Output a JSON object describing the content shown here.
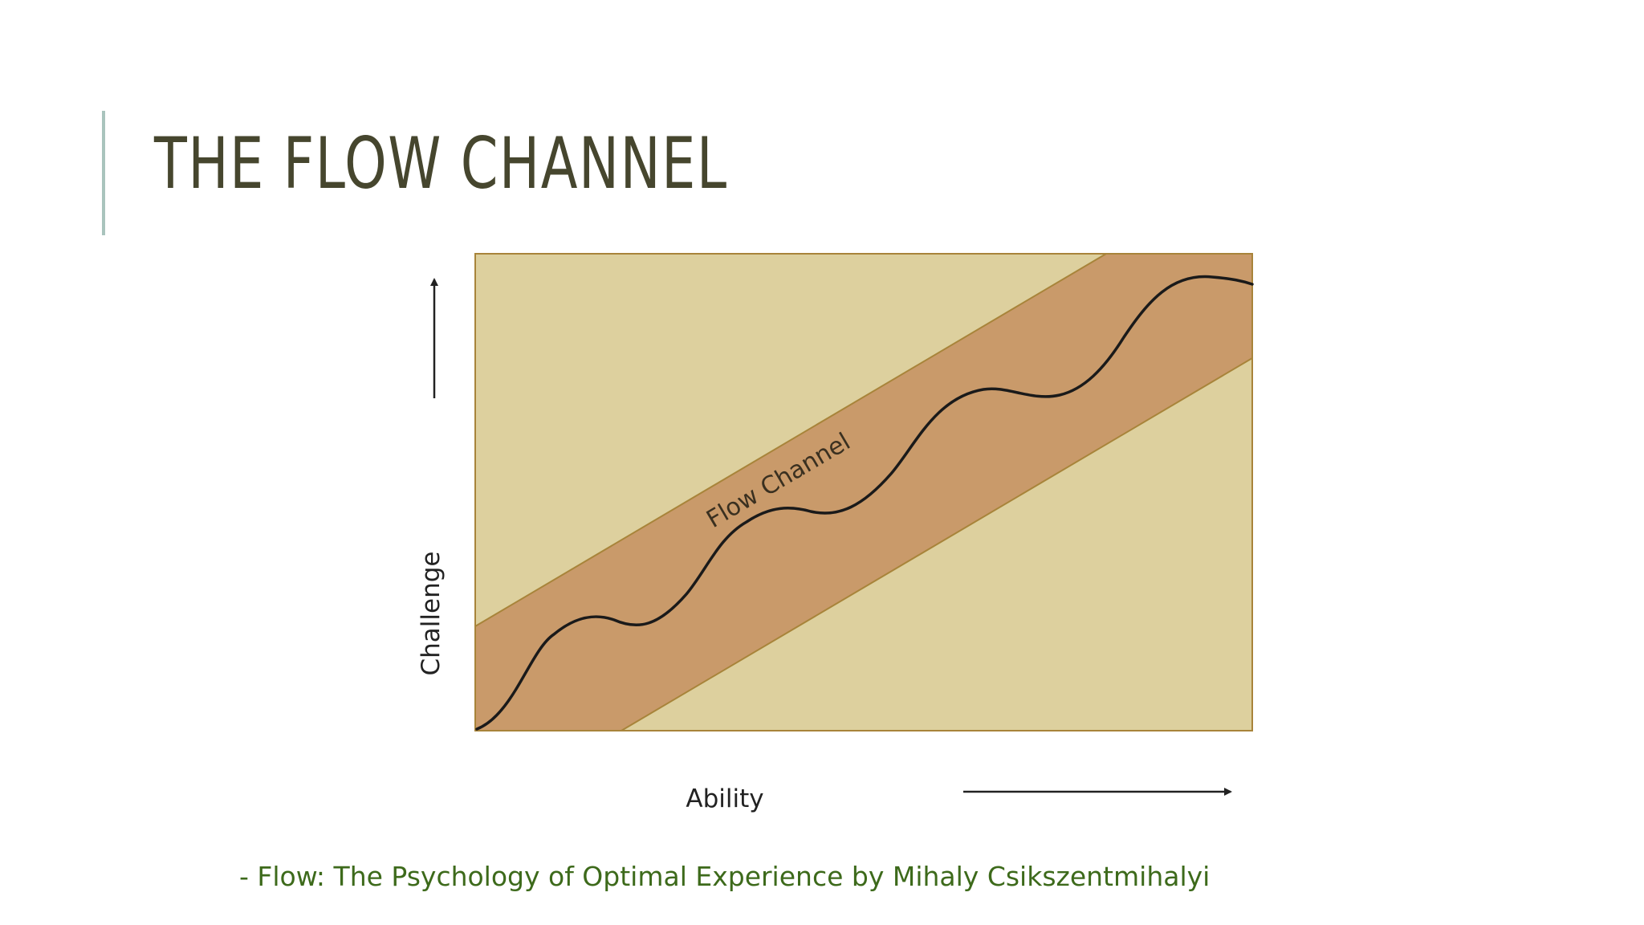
{
  "slide": {
    "title": "THE FLOW CHANNEL",
    "citation": "- Flow: The Psychology of Optimal Experience by Mihaly Csikszentmihalyi"
  },
  "diagram": {
    "band_label": "Flow Channel",
    "x_axis_label": "Ability",
    "y_axis_label": "Challenge",
    "colors": {
      "background_region": "#ddd09e",
      "flow_band": "#c99a6a",
      "border": "#a8843a",
      "curve": "#1a1a1a",
      "axis_arrow": "#222222"
    }
  }
}
